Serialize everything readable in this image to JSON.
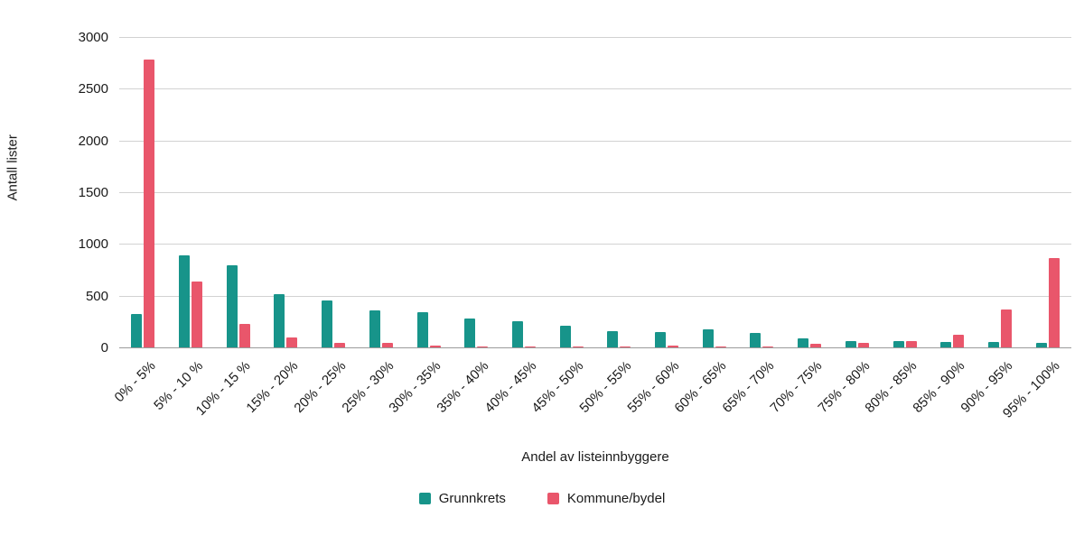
{
  "chart_data": {
    "type": "bar",
    "title": "",
    "xlabel": "Andel av listeinnbyggere",
    "ylabel": "Antall lister",
    "ylim": [
      0,
      3000
    ],
    "yticks": [
      0,
      500,
      1000,
      1500,
      2000,
      2500,
      3000
    ],
    "grid": "horizontal",
    "legend_position": "bottom-center",
    "categories": [
      "0% - 5%",
      "5% - 10 %",
      "10% - 15 %",
      "15% - 20%",
      "20% - 25%",
      "25% - 30%",
      "30% - 35%",
      "35% - 40%",
      "40% - 45%",
      "45% - 50%",
      "50% - 55%",
      "55% - 60%",
      "60% - 65%",
      "65% - 70%",
      "70% - 75%",
      "75% - 80%",
      "80% - 85%",
      "85% - 90%",
      "90% - 95%",
      "95% - 100%"
    ],
    "series": [
      {
        "name": "Grunnkrets",
        "color": "#17948a",
        "values": [
          320,
          890,
          800,
          520,
          455,
          360,
          340,
          280,
          255,
          210,
          160,
          150,
          175,
          140,
          90,
          65,
          60,
          50,
          50,
          40
        ]
      },
      {
        "name": "Kommune/bydel",
        "color": "#e9566b",
        "values": [
          2790,
          640,
          230,
          95,
          45,
          45,
          20,
          12,
          10,
          6,
          6,
          15,
          10,
          10,
          35,
          45,
          60,
          125,
          370,
          870
        ]
      }
    ]
  }
}
